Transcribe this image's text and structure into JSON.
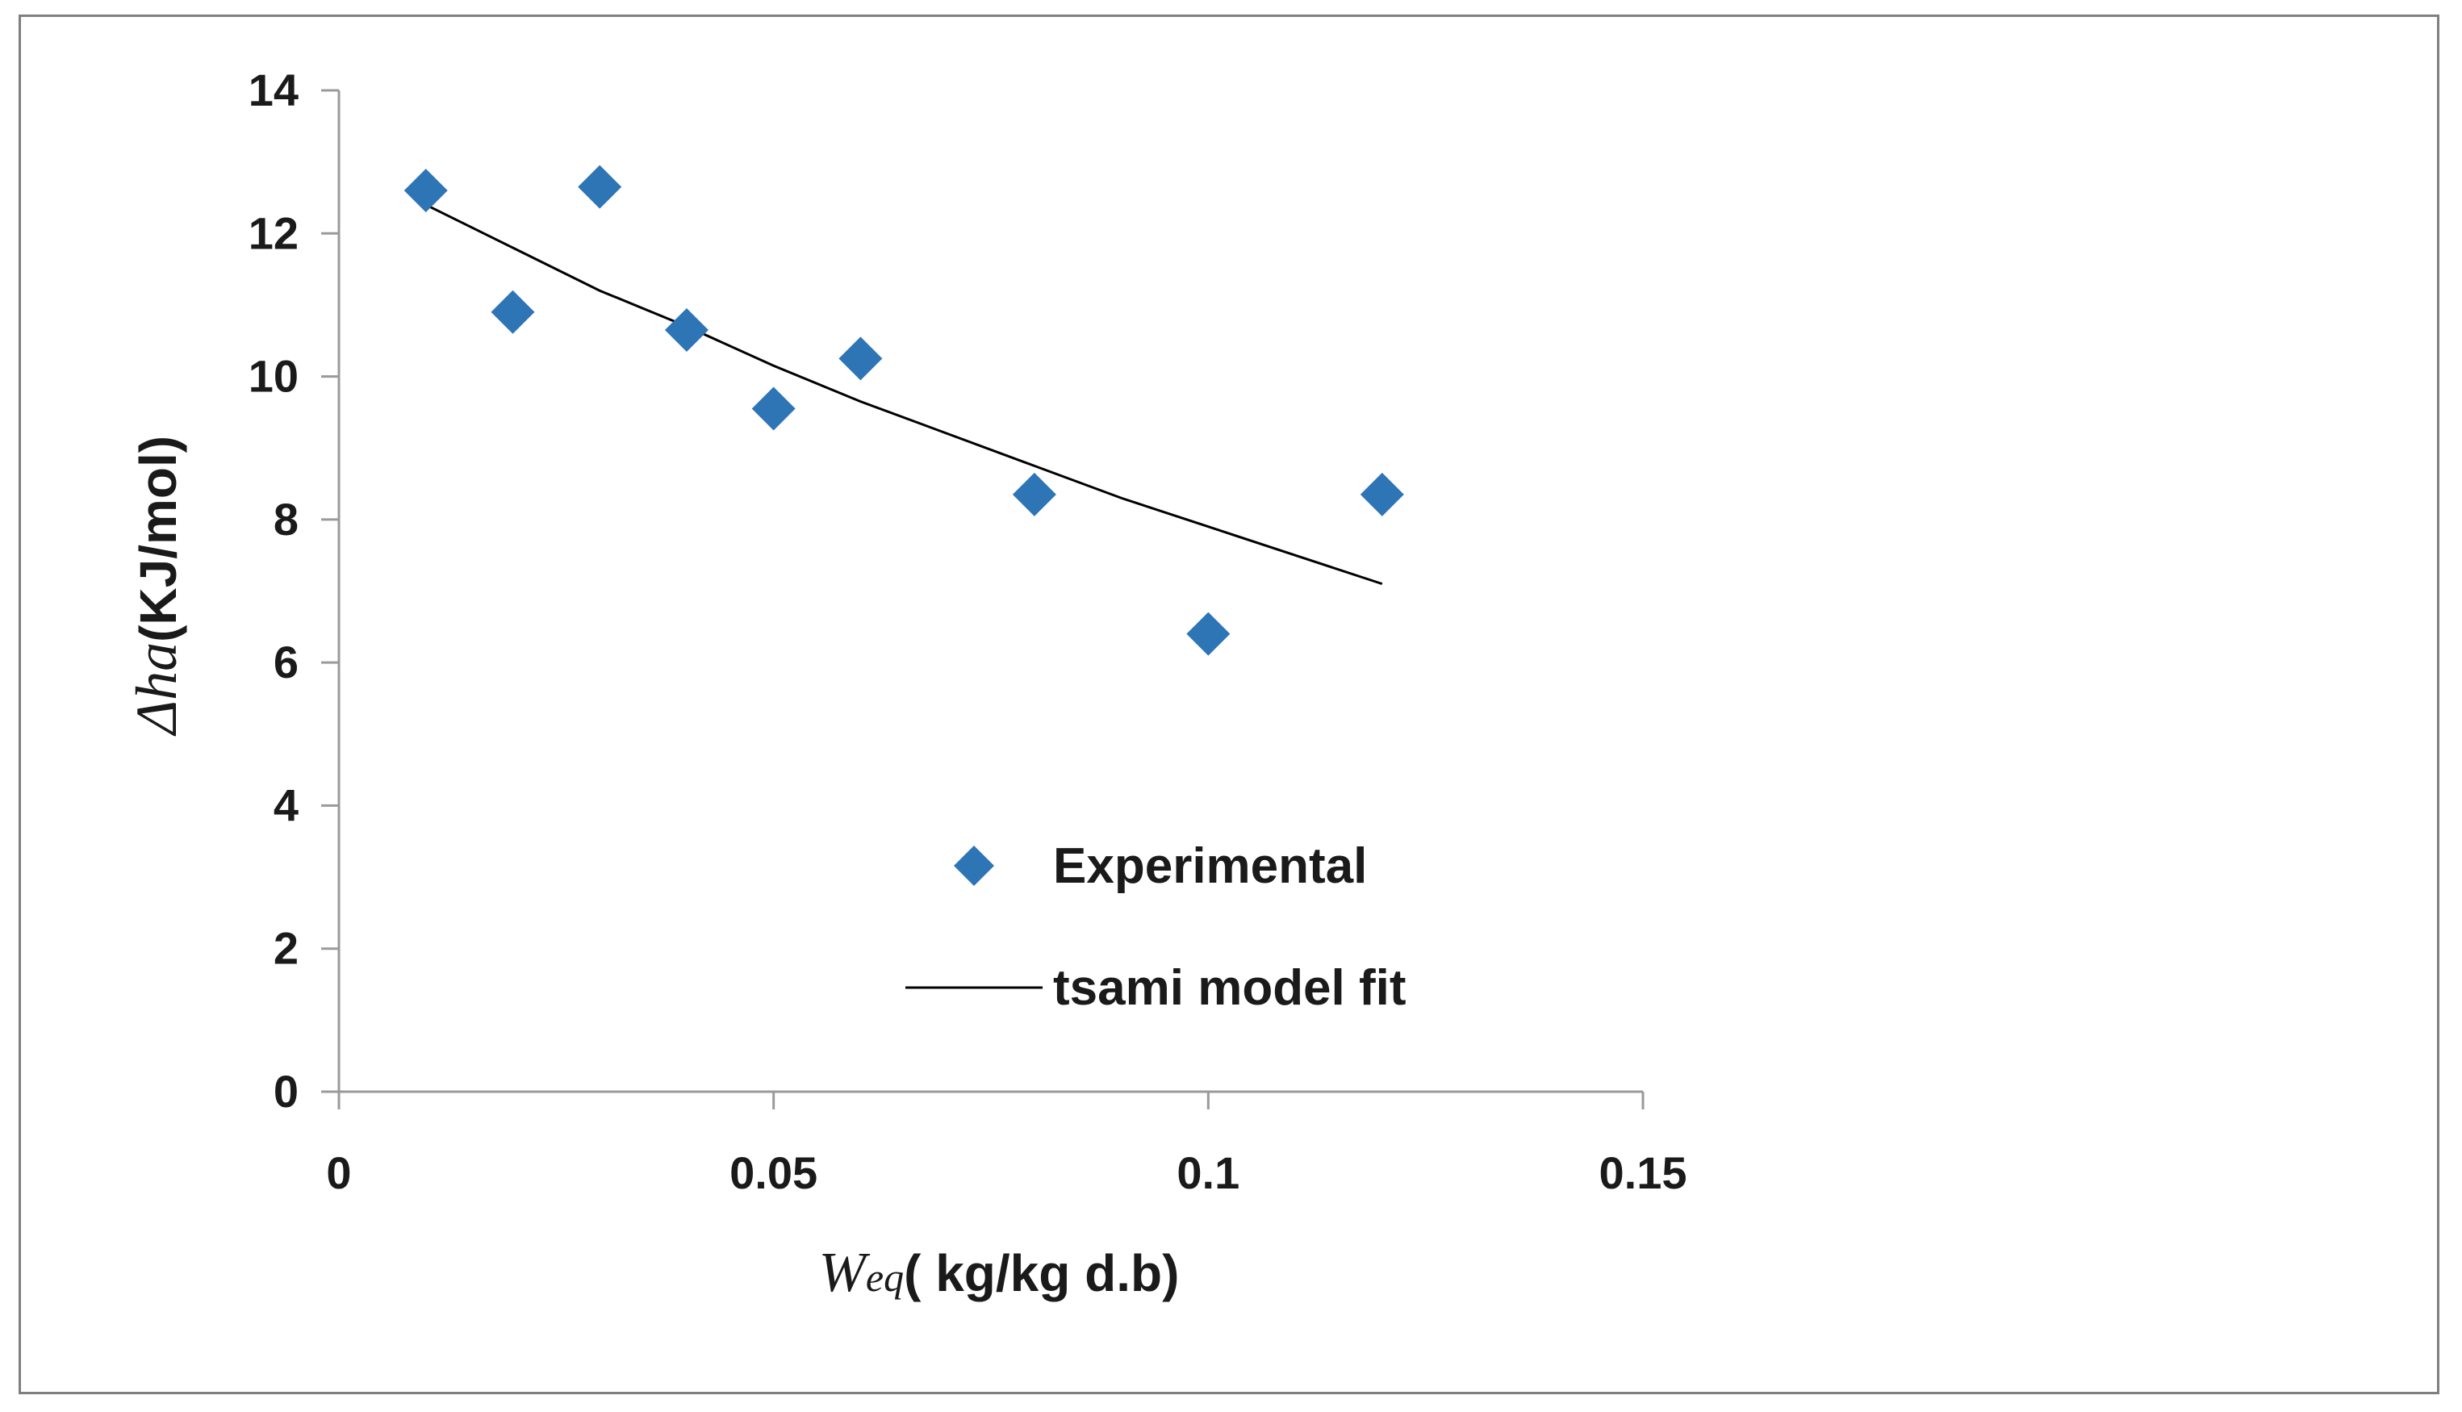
{
  "chart_data": {
    "type": "scatter",
    "x_axis": {
      "min": 0,
      "max": 0.15,
      "ticks": [
        0,
        0.05,
        0.1,
        0.15
      ],
      "tick_labels": [
        "0",
        "0.05",
        "0.1",
        "0.15"
      ],
      "label_symbol": "W",
      "label_subscript": "eq",
      "label_rest": "( kg/kg d.b)"
    },
    "y_axis": {
      "min": 0,
      "max": 14,
      "ticks": [
        0,
        2,
        4,
        6,
        8,
        10,
        12,
        14
      ],
      "tick_labels": [
        "0",
        "2",
        "4",
        "6",
        "8",
        "10",
        "12",
        "14"
      ],
      "label_symbol": "Δha",
      "label_rest": "(KJ/mol)"
    },
    "grid": false,
    "legend_position": "center",
    "series": [
      {
        "name": "Experimental",
        "kind": "markers",
        "marker": "diamond",
        "color": "#2e75b6",
        "x": [
          0.01,
          0.02,
          0.03,
          0.04,
          0.05,
          0.06,
          0.08,
          0.1,
          0.12
        ],
        "y": [
          12.6,
          10.9,
          12.65,
          10.65,
          9.55,
          10.25,
          8.35,
          6.4,
          8.35
        ]
      },
      {
        "name": "tsami model fit",
        "kind": "line",
        "color": "#000000",
        "x": [
          0.01,
          0.02,
          0.03,
          0.04,
          0.05,
          0.06,
          0.07,
          0.08,
          0.09,
          0.1,
          0.11,
          0.12
        ],
        "y": [
          12.4,
          11.8,
          11.2,
          10.7,
          10.15,
          9.65,
          9.2,
          8.75,
          8.3,
          7.9,
          7.5,
          7.1
        ]
      }
    ]
  }
}
